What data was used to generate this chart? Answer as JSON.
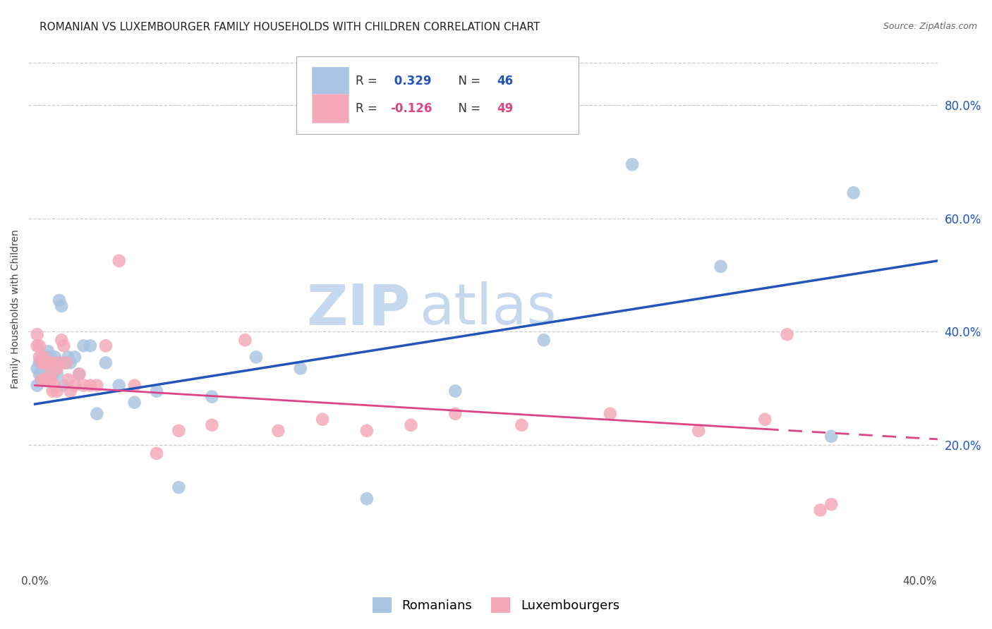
{
  "title": "ROMANIAN VS LUXEMBOURGER FAMILY HOUSEHOLDS WITH CHILDREN CORRELATION CHART",
  "source": "Source: ZipAtlas.com",
  "ylabel": "Family Households with Children",
  "right_ytick_labels": [
    "20.0%",
    "40.0%",
    "60.0%",
    "80.0%"
  ],
  "right_ytick_values": [
    0.2,
    0.4,
    0.6,
    0.8
  ],
  "xlim": [
    -0.003,
    0.408
  ],
  "ylim": [
    -0.02,
    0.9
  ],
  "xtick_labels": [
    "0.0%",
    "",
    "",
    "",
    "",
    "",
    "",
    "",
    "40.0%"
  ],
  "xtick_values": [
    0.0,
    0.05,
    0.1,
    0.15,
    0.2,
    0.25,
    0.3,
    0.35,
    0.4
  ],
  "grid_color": "#cccccc",
  "background_color": "#ffffff",
  "romanian_color": "#a8c4e0",
  "luxembourger_color": "#f4a8b8",
  "trend_romanian_color": "#2255bb",
  "trend_luxembourger_color": "#dd4488",
  "R_romanian": 0.329,
  "N_romanian": 46,
  "R_luxembourger": -0.126,
  "N_luxembourger": 49,
  "watermark_zip": "ZIP",
  "watermark_atlas": "atlas",
  "watermark_color": "#c5d8ee",
  "title_fontsize": 11,
  "axis_label_fontsize": 10,
  "tick_fontsize": 11,
  "legend_fontsize": 12,
  "romanian_x": [
    0.001,
    0.001,
    0.002,
    0.002,
    0.003,
    0.003,
    0.003,
    0.004,
    0.004,
    0.005,
    0.005,
    0.006,
    0.006,
    0.007,
    0.007,
    0.008,
    0.008,
    0.009,
    0.01,
    0.01,
    0.011,
    0.012,
    0.013,
    0.014,
    0.015,
    0.016,
    0.018,
    0.02,
    0.022,
    0.025,
    0.028,
    0.032,
    0.038,
    0.045,
    0.055,
    0.065,
    0.08,
    0.1,
    0.12,
    0.15,
    0.19,
    0.23,
    0.27,
    0.31,
    0.36,
    0.37
  ],
  "romanian_y": [
    0.335,
    0.305,
    0.345,
    0.325,
    0.355,
    0.335,
    0.315,
    0.345,
    0.355,
    0.345,
    0.325,
    0.365,
    0.345,
    0.335,
    0.355,
    0.345,
    0.325,
    0.355,
    0.345,
    0.325,
    0.455,
    0.445,
    0.305,
    0.345,
    0.355,
    0.345,
    0.355,
    0.325,
    0.375,
    0.375,
    0.255,
    0.345,
    0.305,
    0.275,
    0.295,
    0.125,
    0.285,
    0.355,
    0.335,
    0.105,
    0.295,
    0.385,
    0.695,
    0.515,
    0.215,
    0.645
  ],
  "luxembourger_x": [
    0.001,
    0.001,
    0.002,
    0.002,
    0.003,
    0.003,
    0.004,
    0.004,
    0.005,
    0.005,
    0.006,
    0.006,
    0.007,
    0.007,
    0.008,
    0.008,
    0.009,
    0.01,
    0.01,
    0.011,
    0.012,
    0.013,
    0.014,
    0.015,
    0.016,
    0.018,
    0.02,
    0.022,
    0.025,
    0.028,
    0.032,
    0.038,
    0.045,
    0.055,
    0.065,
    0.08,
    0.095,
    0.11,
    0.13,
    0.15,
    0.17,
    0.19,
    0.22,
    0.26,
    0.3,
    0.33,
    0.34,
    0.355,
    0.36
  ],
  "luxembourger_y": [
    0.395,
    0.375,
    0.375,
    0.355,
    0.345,
    0.315,
    0.345,
    0.355,
    0.345,
    0.315,
    0.345,
    0.315,
    0.325,
    0.315,
    0.345,
    0.295,
    0.305,
    0.295,
    0.335,
    0.345,
    0.385,
    0.375,
    0.345,
    0.315,
    0.295,
    0.305,
    0.325,
    0.305,
    0.305,
    0.305,
    0.375,
    0.525,
    0.305,
    0.185,
    0.225,
    0.235,
    0.385,
    0.225,
    0.245,
    0.225,
    0.235,
    0.255,
    0.235,
    0.255,
    0.225,
    0.245,
    0.395,
    0.085,
    0.095
  ],
  "trend_rom_x0": 0.0,
  "trend_rom_x1": 0.408,
  "trend_rom_y0": 0.272,
  "trend_rom_y1": 0.525,
  "trend_lux_x0": 0.0,
  "trend_lux_x1": 0.33,
  "trend_lux_x1_dashed": 0.408,
  "trend_lux_y0": 0.305,
  "trend_lux_y1": 0.228,
  "trend_lux_y1_dashed": 0.21
}
